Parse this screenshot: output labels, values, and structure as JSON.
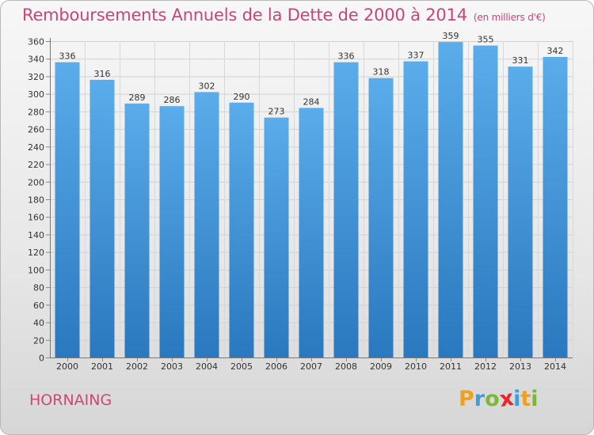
{
  "header": {
    "title": "Remboursements Annuels de la Dette de 2000 à 2014",
    "unit": "(en milliers d'€)"
  },
  "footer": {
    "commune": "HORNAING",
    "logo_letters": [
      "P",
      "r",
      "o",
      "x",
      "i",
      "t",
      "i"
    ],
    "logo_colors": [
      "#f0a020",
      "#3d9fd8",
      "#7bb83a",
      "#e8262a",
      "#3d9fd8",
      "#f0a020",
      "#7bb83a"
    ]
  },
  "chart_data": {
    "type": "bar",
    "categories": [
      "2000",
      "2001",
      "2002",
      "2003",
      "2004",
      "2005",
      "2006",
      "2007",
      "2008",
      "2009",
      "2010",
      "2011",
      "2012",
      "2013",
      "2014"
    ],
    "values": [
      336,
      316,
      289,
      286,
      302,
      290,
      273,
      284,
      336,
      318,
      337,
      359,
      355,
      331,
      342
    ],
    "ylim": [
      0,
      360
    ],
    "yticks": [
      0,
      20,
      40,
      60,
      80,
      100,
      120,
      140,
      160,
      180,
      200,
      220,
      240,
      260,
      280,
      300,
      320,
      340,
      360
    ],
    "grid": true,
    "bar_color_top": "#5aacea",
    "bar_color_bottom": "#2a78bf"
  }
}
